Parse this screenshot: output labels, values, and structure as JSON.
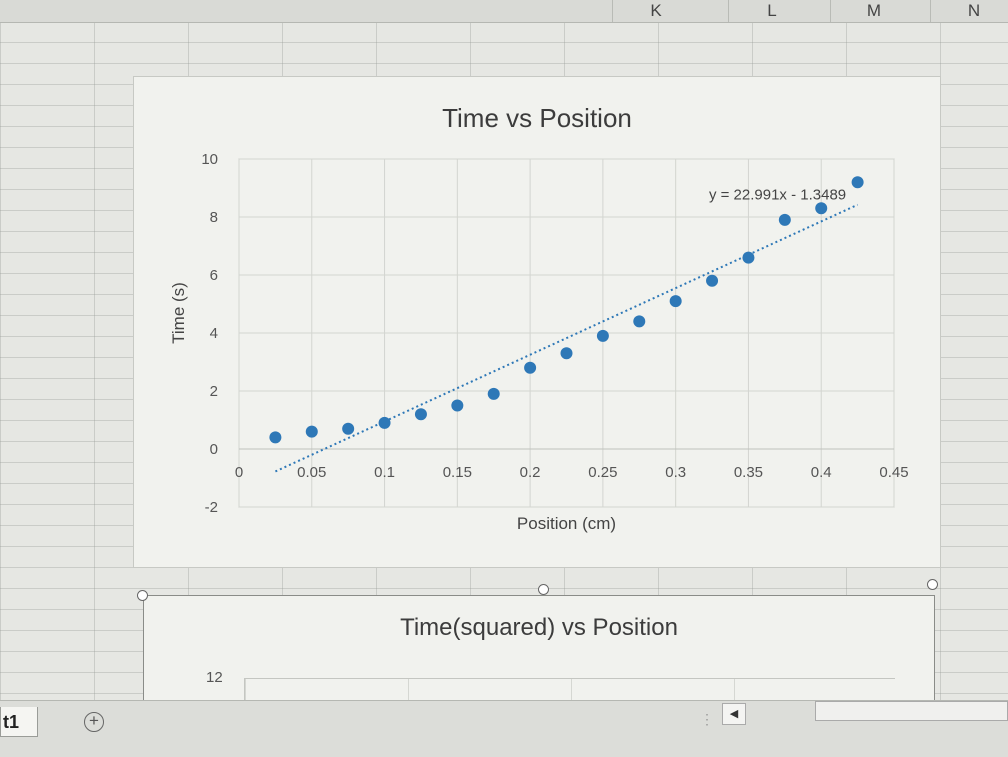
{
  "sheet": {
    "columns": [
      "K",
      "L",
      "M",
      "N"
    ],
    "tab_name": "t1",
    "add_sheet_symbol": "+",
    "scroll_left_symbol": "◀",
    "scroll_dots": "⋮"
  },
  "chart_data": [
    {
      "type": "scatter",
      "title": "Time vs Position",
      "xlabel": "Position (cm)",
      "ylabel": "Time (s)",
      "xlim": [
        0,
        0.45
      ],
      "ylim": [
        -2,
        10
      ],
      "xticks": [
        "0",
        "0.05",
        "0.1",
        "0.15",
        "0.2",
        "0.25",
        "0.3",
        "0.35",
        "0.4",
        "0.45"
      ],
      "yticks": [
        "-2",
        "0",
        "2",
        "4",
        "6",
        "8",
        "10"
      ],
      "grid": true,
      "point_color": "#2e78b7",
      "trendline": {
        "equation": "y = 22.991x - 1.3489",
        "slope": 22.991,
        "intercept": -1.3489,
        "style": "dotted",
        "color": "#2e78b7"
      },
      "series": [
        {
          "points": [
            [
              0.025,
              0.4
            ],
            [
              0.05,
              0.6
            ],
            [
              0.075,
              0.7
            ],
            [
              0.1,
              0.9
            ],
            [
              0.125,
              1.2
            ],
            [
              0.15,
              1.5
            ],
            [
              0.175,
              1.9
            ],
            [
              0.2,
              2.8
            ],
            [
              0.225,
              3.3
            ],
            [
              0.25,
              3.9
            ],
            [
              0.275,
              4.4
            ],
            [
              0.3,
              5.1
            ],
            [
              0.325,
              5.8
            ],
            [
              0.35,
              6.6
            ],
            [
              0.375,
              7.9
            ],
            [
              0.4,
              8.3
            ],
            [
              0.425,
              9.2
            ]
          ]
        }
      ]
    },
    {
      "type": "scatter",
      "title": "Time(squared) vs Position",
      "yticks": [
        "12"
      ]
    }
  ]
}
